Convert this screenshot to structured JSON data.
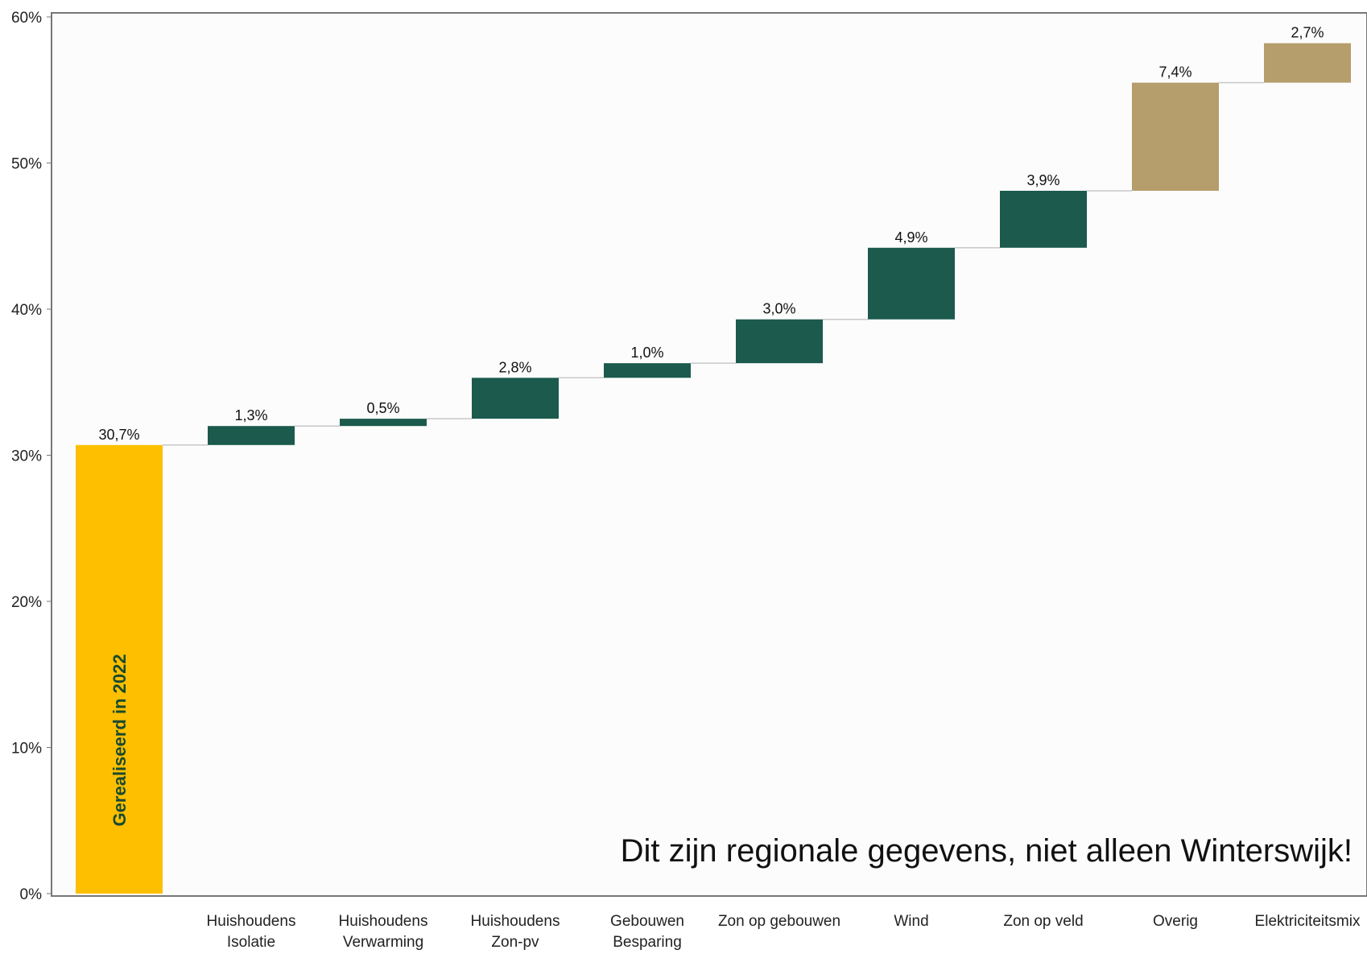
{
  "chart_data": {
    "type": "bar",
    "subtype": "waterfall",
    "categories": [
      "",
      "Huishoudens\nIsolatie",
      "Huishoudens\nVerwarming",
      "Huishoudens\nZon-pv",
      "Gebouwen\nBesparing",
      "Zon op gebouwen",
      "Wind",
      "Zon op veld",
      "Overig",
      "Elektriciteitsmix"
    ],
    "values": [
      30.7,
      1.3,
      0.5,
      2.8,
      1.0,
      3.0,
      4.9,
      3.9,
      7.4,
      2.7
    ],
    "value_labels": [
      "30,7%",
      "1,3%",
      "0,5%",
      "2,8%",
      "1,0%",
      "3,0%",
      "4,9%",
      "3,9%",
      "7,4%",
      "2,7%"
    ],
    "bar_colors": [
      "#fdbf00",
      "#1b5a4d",
      "#1b5a4d",
      "#1b5a4d",
      "#1b5a4d",
      "#1b5a4d",
      "#1b5a4d",
      "#1b5a4d",
      "#b59e6b",
      "#b59e6b"
    ],
    "ylim": [
      0,
      60
    ],
    "yticks": [
      0,
      10,
      20,
      30,
      40,
      50,
      60
    ],
    "ytick_labels": [
      "0%",
      "10%",
      "20%",
      "30%",
      "40%",
      "50%",
      "60%"
    ],
    "xlabel": "",
    "ylabel": "",
    "title": "",
    "grid": false,
    "first_bar_inner_label": "Gerealiseerd  in 2022",
    "annotation": "Dit zijn regionale gegevens, niet alleen Winterswijk!"
  }
}
